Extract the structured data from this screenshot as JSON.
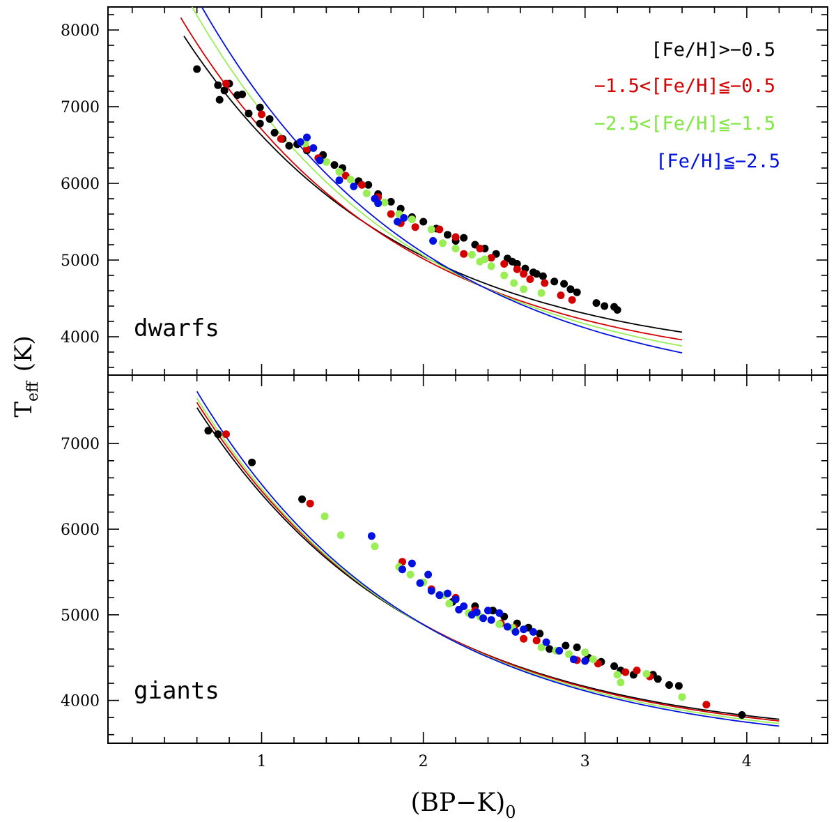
{
  "chart_data": {
    "type": "scatter",
    "x_label": "(BP−K)",
    "x_label_subscript": "0",
    "y_label": "T",
    "y_label_subscript": "eff",
    "y_label_unit": "(K)",
    "x_range": [
      0.05,
      4.5
    ],
    "x_ticks": [
      1,
      2,
      3,
      4
    ],
    "x_minor_step": 0.2,
    "legend": [
      {
        "label": "[Fe/H]>−0.5",
        "color": "#000000"
      },
      {
        "label": "−1.5<[Fe/H]≦−0.5",
        "color": "#d40000"
      },
      {
        "label": "−2.5<[Fe/H]≦−1.5",
        "color": "#99ee55"
      },
      {
        "label": "[Fe/H]≦−2.5",
        "color": "#0010e0"
      }
    ],
    "panels": [
      {
        "name": "dwarfs",
        "label": "dwarfs",
        "y_range": [
          3500,
          8300
        ],
        "y_ticks": [
          4000,
          5000,
          6000,
          7000,
          8000
        ],
        "y_minor_step": 200,
        "fits": [
          {
            "series": "[Fe/H]>−0.5",
            "color": "#000000",
            "x_range": [
              0.52,
              3.6
            ],
            "T_start": 7920,
            "T_end": 4060,
            "curvature": 0.75
          },
          {
            "series": "−1.5<[Fe/H]≦−0.5",
            "color": "#d40000",
            "x_range": [
              0.5,
              3.6
            ],
            "T_start": 8160,
            "T_end": 3960,
            "curvature": 0.75
          },
          {
            "series": "−2.5<[Fe/H]≦−1.5",
            "color": "#99ee55",
            "x_range": [
              0.57,
              3.6
            ],
            "T_start": 8300,
            "T_end": 3880,
            "curvature": 0.75
          },
          {
            "series": "[Fe/H]≦−2.5",
            "color": "#0010e0",
            "x_range": [
              0.63,
              3.6
            ],
            "T_start": 8300,
            "T_end": 3790,
            "curvature": 0.72
          }
        ],
        "points": {
          "[Fe/H]>−0.5": [
            [
              0.6,
              7490
            ],
            [
              0.73,
              7280
            ],
            [
              0.77,
              7210
            ],
            [
              0.8,
              7300
            ],
            [
              0.74,
              7090
            ],
            [
              0.88,
              7160
            ],
            [
              0.85,
              7150
            ],
            [
              0.92,
              6910
            ],
            [
              0.99,
              6990
            ],
            [
              0.99,
              6780
            ],
            [
              1.05,
              6840
            ],
            [
              1.08,
              6660
            ],
            [
              1.13,
              6580
            ],
            [
              1.17,
              6490
            ],
            [
              1.22,
              6510
            ],
            [
              1.28,
              6430
            ],
            [
              1.38,
              6370
            ],
            [
              1.45,
              6240
            ],
            [
              1.5,
              6200
            ],
            [
              1.6,
              6030
            ],
            [
              1.66,
              5980
            ],
            [
              1.72,
              5860
            ],
            [
              1.8,
              5760
            ],
            [
              1.86,
              5670
            ],
            [
              1.93,
              5560
            ],
            [
              2.0,
              5500
            ],
            [
              2.08,
              5410
            ],
            [
              2.15,
              5330
            ],
            [
              2.25,
              5290
            ],
            [
              2.32,
              5200
            ],
            [
              2.38,
              5150
            ],
            [
              2.45,
              5080
            ],
            [
              2.52,
              5020
            ],
            [
              2.58,
              4950
            ],
            [
              2.63,
              4890
            ],
            [
              2.68,
              4840
            ],
            [
              2.74,
              4790
            ],
            [
              2.81,
              4720
            ],
            [
              2.87,
              4690
            ],
            [
              2.91,
              4620
            ],
            [
              2.95,
              4580
            ],
            [
              3.07,
              4440
            ],
            [
              3.12,
              4400
            ],
            [
              3.18,
              4390
            ],
            [
              3.2,
              4350
            ],
            [
              2.2,
              5250
            ],
            [
              2.55,
              4980
            ],
            [
              2.7,
              4820
            ]
          ],
          "−1.5<[Fe/H]≦−0.5": [
            [
              0.78,
              7300
            ],
            [
              1.0,
              6900
            ],
            [
              1.12,
              6580
            ],
            [
              1.28,
              6450
            ],
            [
              1.35,
              6330
            ],
            [
              1.52,
              6100
            ],
            [
              1.62,
              5980
            ],
            [
              1.72,
              5820
            ],
            [
              1.8,
              5600
            ],
            [
              1.86,
              5480
            ],
            [
              1.95,
              5430
            ],
            [
              2.1,
              5400
            ],
            [
              2.2,
              5300
            ],
            [
              2.25,
              5080
            ],
            [
              2.35,
              5150
            ],
            [
              2.42,
              5030
            ],
            [
              2.5,
              4950
            ],
            [
              2.58,
              4880
            ],
            [
              2.62,
              4820
            ],
            [
              2.66,
              4750
            ],
            [
              2.75,
              4700
            ],
            [
              2.85,
              4540
            ],
            [
              2.92,
              4480
            ]
          ],
          "−2.5<[Fe/H]≦−1.5": [
            [
              1.27,
              6520
            ],
            [
              1.4,
              6280
            ],
            [
              1.48,
              6150
            ],
            [
              1.55,
              6050
            ],
            [
              1.65,
              5870
            ],
            [
              1.76,
              5750
            ],
            [
              1.85,
              5600
            ],
            [
              1.93,
              5530
            ],
            [
              2.05,
              5400
            ],
            [
              2.12,
              5220
            ],
            [
              2.2,
              5150
            ],
            [
              2.3,
              5070
            ],
            [
              2.35,
              4980
            ],
            [
              2.42,
              4920
            ],
            [
              2.5,
              4800
            ],
            [
              2.56,
              4700
            ],
            [
              2.62,
              4620
            ],
            [
              2.73,
              4570
            ],
            [
              2.38,
              5010
            ]
          ],
          "[Fe/H]≦−2.5": [
            [
              1.24,
              6540
            ],
            [
              1.28,
              6600
            ],
            [
              1.32,
              6460
            ],
            [
              1.36,
              6300
            ],
            [
              1.48,
              6040
            ],
            [
              1.57,
              5960
            ],
            [
              1.7,
              5800
            ],
            [
              1.72,
              5740
            ],
            [
              1.84,
              5500
            ],
            [
              1.88,
              5550
            ],
            [
              2.06,
              5250
            ]
          ]
        }
      },
      {
        "name": "giants",
        "label": "giants",
        "y_range": [
          3500,
          7800
        ],
        "y_ticks": [
          4000,
          5000,
          6000,
          7000
        ],
        "y_minor_step": 200,
        "fits": [
          {
            "series": "[Fe/H]>−0.5",
            "color": "#000000",
            "x_range": [
              0.6,
              4.2
            ],
            "T_start": 7420,
            "T_end": 3780,
            "curvature": 0.75
          },
          {
            "series": "−1.5<[Fe/H]≦−0.5",
            "color": "#d40000",
            "x_range": [
              0.6,
              4.2
            ],
            "T_start": 7480,
            "T_end": 3760,
            "curvature": 0.75
          },
          {
            "series": "−2.5<[Fe/H]≦−1.5",
            "color": "#99ee55",
            "x_range": [
              0.6,
              4.2
            ],
            "T_start": 7530,
            "T_end": 3730,
            "curvature": 0.75
          },
          {
            "series": "[Fe/H]≦−2.5",
            "color": "#0010e0",
            "x_range": [
              0.6,
              4.2
            ],
            "T_start": 7610,
            "T_end": 3700,
            "curvature": 0.75
          }
        ],
        "points": {
          "[Fe/H]>−0.5": [
            [
              0.67,
              7150
            ],
            [
              0.73,
              7110
            ],
            [
              0.94,
              6780
            ],
            [
              1.25,
              6350
            ],
            [
              2.1,
              5230
            ],
            [
              2.18,
              5150
            ],
            [
              2.32,
              5100
            ],
            [
              2.43,
              5050
            ],
            [
              2.5,
              4980
            ],
            [
              2.58,
              4900
            ],
            [
              2.65,
              4850
            ],
            [
              2.72,
              4780
            ],
            [
              2.78,
              4600
            ],
            [
              2.88,
              4640
            ],
            [
              2.95,
              4620
            ],
            [
              3.02,
              4500
            ],
            [
              3.1,
              4450
            ],
            [
              3.18,
              4400
            ],
            [
              3.22,
              4350
            ],
            [
              3.3,
              4300
            ],
            [
              3.42,
              4300
            ],
            [
              3.45,
              4250
            ],
            [
              3.52,
              4180
            ],
            [
              3.58,
              4170
            ],
            [
              3.97,
              3830
            ]
          ],
          "−1.5<[Fe/H]≦−0.5": [
            [
              0.78,
              7110
            ],
            [
              1.3,
              6300
            ],
            [
              1.87,
              5620
            ],
            [
              2.05,
              5300
            ],
            [
              2.2,
              5200
            ],
            [
              2.32,
              5050
            ],
            [
              2.48,
              4900
            ],
            [
              2.56,
              4850
            ],
            [
              2.62,
              4720
            ],
            [
              2.7,
              4700
            ],
            [
              2.95,
              4470
            ],
            [
              3.08,
              4430
            ],
            [
              3.25,
              4330
            ],
            [
              3.32,
              4350
            ],
            [
              3.4,
              4280
            ],
            [
              3.75,
              3950
            ]
          ],
          "−2.5<[Fe/H]≦−1.5": [
            [
              1.39,
              6150
            ],
            [
              1.49,
              5930
            ],
            [
              1.7,
              5800
            ],
            [
              1.85,
              5560
            ],
            [
              1.92,
              5470
            ],
            [
              2.0,
              5380
            ],
            [
              2.13,
              5230
            ],
            [
              2.16,
              5130
            ],
            [
              2.28,
              5020
            ],
            [
              2.35,
              4980
            ],
            [
              2.47,
              4890
            ],
            [
              2.55,
              4850
            ],
            [
              2.73,
              4620
            ],
            [
              2.82,
              4580
            ],
            [
              2.9,
              4540
            ],
            [
              3.0,
              4560
            ],
            [
              3.05,
              4480
            ],
            [
              3.2,
              4300
            ],
            [
              3.22,
              4210
            ],
            [
              3.38,
              4310
            ],
            [
              3.6,
              4040
            ]
          ],
          "[Fe/H]≦−2.5": [
            [
              1.68,
              5920
            ],
            [
              1.87,
              5530
            ],
            [
              1.93,
              5600
            ],
            [
              2.03,
              5470
            ],
            [
              1.98,
              5370
            ],
            [
              2.05,
              5280
            ],
            [
              2.1,
              5230
            ],
            [
              2.15,
              5250
            ],
            [
              2.2,
              5180
            ],
            [
              2.22,
              5060
            ],
            [
              2.25,
              5100
            ],
            [
              2.3,
              5000
            ],
            [
              2.33,
              5030
            ],
            [
              2.37,
              4960
            ],
            [
              2.4,
              5050
            ],
            [
              2.42,
              4940
            ],
            [
              2.47,
              5020
            ],
            [
              2.52,
              4860
            ],
            [
              2.57,
              4800
            ],
            [
              2.62,
              4830
            ],
            [
              2.68,
              4800
            ],
            [
              2.76,
              4680
            ],
            [
              2.84,
              4580
            ],
            [
              2.93,
              4480
            ],
            [
              3.0,
              4460
            ]
          ]
        }
      }
    ]
  }
}
